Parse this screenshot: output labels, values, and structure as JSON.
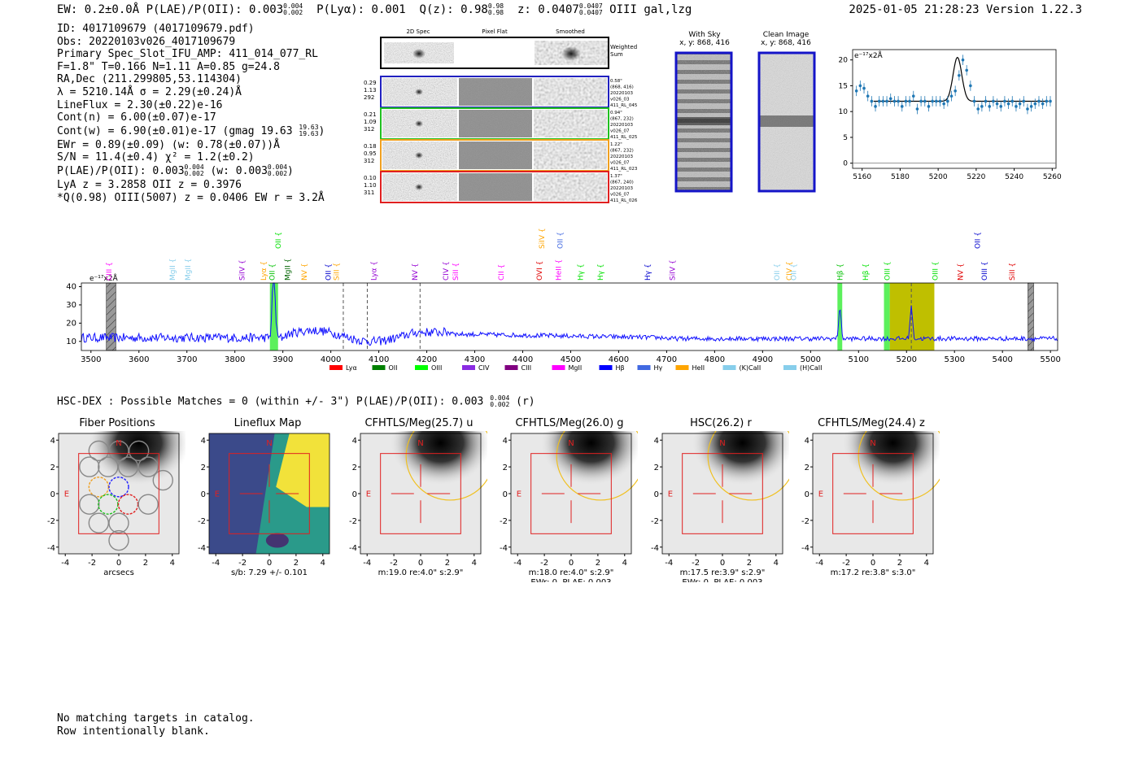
{
  "header": {
    "left": "EW: 0.2±0.0Å  P(LAE)/P(OII): 0.003",
    "plae_frac": [
      "0.004",
      "0.002"
    ],
    "plya": "P(Lyα): 0.001",
    "qz": "Q(z): 0.98",
    "qz_frac": [
      "0.98",
      "0.98"
    ],
    "z": "z: 0.0407",
    "z_frac": [
      "0.0407",
      "0.0407"
    ],
    "line": "OIII  gal,lzg",
    "right": "2025-01-05 21:28:23  Version 1.22.3"
  },
  "info": {
    "lines": [
      "ID: 4017109679 (4017109679.pdf)",
      "Obs: 20220103v026_4017109679",
      "Primary Spec_Slot_IFU_AMP: 411_014_077_RL",
      "F=1.8\"  T=0.166  N=1.11  A=0.85  g=24.8",
      "RA,Dec (211.299805,53.114304)",
      "λ = 5210.14Å  σ = 2.29(±0.24)Å",
      "LineFlux = 2.30(±0.22)e-16",
      "Cont(n) = 6.00(±0.07)e-17",
      "Cont(w) = 6.90(±0.01)e-17 (gmag 19.63",
      "EWr = 0.89(±0.09) (w: 0.78(±0.07))Å",
      "S/N = 11.4(±0.4)  χ² = 1.2(±0.2)",
      "P(LAE)/P(OII): 0.003",
      "LyA z = 3.2858  OII z = 0.3976",
      "*Q(0.98) OIII(5007) z = 0.0406  EW r = 3.2Å"
    ],
    "gmag_frac": [
      "19.63",
      "19.63"
    ],
    "plae_frac": [
      "0.004",
      "0.002"
    ],
    "plae_w": "(w: 0.003",
    "plae_w_frac": [
      "0.004",
      "0.002"
    ],
    "close_paren": ")"
  },
  "cutouts": {
    "col_titles": [
      "2D Spec",
      "Pixel Flat",
      "Smoothed"
    ],
    "weighted_label": [
      "Weighted",
      "Sum"
    ],
    "rows": [
      {
        "left": [
          "0.29",
          "1.13",
          "292"
        ],
        "right": [
          "0.58\"",
          "(868, 416)",
          "20220103",
          "v026_03",
          "411_RL_045"
        ],
        "color": "#2020c0"
      },
      {
        "left": [
          "0.21",
          "1.09",
          "312"
        ],
        "right": [
          "0.94\"",
          "(867, 232)",
          "20220103",
          "v026_07",
          "411_RL_025"
        ],
        "color": "#20c020"
      },
      {
        "left": [
          "0.18",
          "0.95",
          "312"
        ],
        "right": [
          "1.22\"",
          "(867, 232)",
          "20220103",
          "v026_07",
          "411_RL_023"
        ],
        "color": "#f0a020"
      },
      {
        "left": [
          "0.10",
          "1.10",
          "311"
        ],
        "right": [
          "1.37\"",
          "(867, 240)",
          "20220103",
          "v026_07",
          "411_RL_026"
        ],
        "color": "#e02020"
      }
    ]
  },
  "sky": {
    "with_sky": [
      "With Sky",
      "x, y: 868, 416"
    ],
    "clean": [
      "Clean Image",
      "x, y: 868, 416"
    ]
  },
  "zoom_chart": {
    "type": "scatter",
    "ylabel_unit": "e⁻¹⁷x2Å",
    "xlim": [
      5155,
      5262
    ],
    "ylim": [
      -1,
      22
    ],
    "xticks": [
      5160,
      5180,
      5200,
      5220,
      5240,
      5260
    ],
    "yticks": [
      0,
      5,
      10,
      15,
      20
    ],
    "x": [
      5157,
      5159,
      5161,
      5163,
      5165,
      5167,
      5169,
      5171,
      5173,
      5175,
      5177,
      5179,
      5181,
      5183,
      5185,
      5187,
      5189,
      5191,
      5193,
      5195,
      5197,
      5199,
      5201,
      5203,
      5205,
      5207,
      5209,
      5211,
      5213,
      5215,
      5217,
      5219,
      5221,
      5223,
      5225,
      5227,
      5229,
      5231,
      5233,
      5235,
      5237,
      5239,
      5241,
      5243,
      5245,
      5247,
      5249,
      5251,
      5253,
      5255,
      5257,
      5259
    ],
    "y": [
      14,
      15,
      14.5,
      13,
      12,
      11,
      12,
      12,
      12,
      12.5,
      12,
      12,
      11,
      12,
      12,
      13,
      10.5,
      12,
      12,
      11,
      12,
      12,
      12,
      11.5,
      12,
      13,
      14,
      17,
      20,
      18,
      15,
      12,
      10.5,
      11,
      12,
      11,
      12,
      11.5,
      11,
      12,
      11.5,
      12,
      11,
      11.5,
      12,
      10.5,
      11,
      11.5,
      12,
      11.5,
      12,
      12
    ],
    "fit": {
      "continuum": 12,
      "center": 5210.14,
      "sigma": 2.29,
      "peak": 8.5,
      "xrange": [
        5166,
        5258
      ]
    }
  },
  "spectrum_chart": {
    "type": "line",
    "ylabel_unit": "e⁻¹⁷x2Å",
    "xlim": [
      3480,
      5515
    ],
    "ylim": [
      5,
      42
    ],
    "xticks": [
      3500,
      3600,
      3700,
      3800,
      3900,
      4000,
      4100,
      4200,
      4300,
      4400,
      4500,
      4600,
      4700,
      4800,
      4900,
      5000,
      5100,
      5200,
      5300,
      5400,
      5500
    ],
    "yticks": [
      10,
      20,
      30,
      40
    ],
    "line_color": "#1010ff",
    "hatched_regions": [
      [
        3532,
        3552
      ],
      [
        5453,
        5465
      ]
    ],
    "green_bands": [
      [
        3873,
        3890
      ],
      [
        5056,
        5066
      ],
      [
        5153,
        5165
      ]
    ],
    "olive_band": [
      5165,
      5258
    ],
    "dashed_lines": [
      4026,
      4076,
      4186,
      5210
    ],
    "peaks": [
      {
        "x": 3881,
        "height": 38,
        "width": 3
      },
      {
        "x": 5061,
        "height": 17,
        "width": 2.5
      },
      {
        "x": 5210,
        "height": 18,
        "width": 2.5
      }
    ],
    "line_labels": [
      {
        "x": 3538,
        "label": "CIII",
        "color": "#ff00ff",
        "row": 0
      },
      {
        "x": 3670,
        "label": "MgII",
        "color": "#87ceeb",
        "row": 0
      },
      {
        "x": 3702,
        "label": "MgII",
        "color": "#87ceeb",
        "row": 0
      },
      {
        "x": 3815,
        "label": "SiIV",
        "color": "#9400d3",
        "row": 0
      },
      {
        "x": 3860,
        "label": "Lyα",
        "color": "#ffa500",
        "row": 0
      },
      {
        "x": 3878,
        "label": "OII",
        "color": "#00c000",
        "row": 0
      },
      {
        "x": 3890,
        "label": "OII",
        "color": "#00e000",
        "row": 1
      },
      {
        "x": 3910,
        "label": "MgII",
        "color": "#006400",
        "row": 0
      },
      {
        "x": 3945,
        "label": "NV",
        "color": "#ffa500",
        "row": 0
      },
      {
        "x": 3995,
        "label": "OII",
        "color": "#0000cd",
        "row": 0
      },
      {
        "x": 4012,
        "label": "SiII",
        "color": "#ffa500",
        "row": 0
      },
      {
        "x": 4090,
        "label": "Lyα",
        "color": "#9400d3",
        "row": 0
      },
      {
        "x": 4175,
        "label": "NV",
        "color": "#9400d3",
        "row": 0
      },
      {
        "x": 4240,
        "label": "CIV",
        "color": "#9400d3",
        "row": 0
      },
      {
        "x": 4260,
        "label": "SiII",
        "color": "#ff00ff",
        "row": 0
      },
      {
        "x": 4355,
        "label": "CII",
        "color": "#ff00ff",
        "row": 0
      },
      {
        "x": 4435,
        "label": "OVI",
        "color": "#e00000",
        "row": 0
      },
      {
        "x": 4440,
        "label": "SiIV",
        "color": "#ffa500",
        "row": 1
      },
      {
        "x": 4475,
        "label": "HeII",
        "color": "#ff00ff",
        "row": 0
      },
      {
        "x": 4478,
        "label": "OII",
        "color": "#4169e1",
        "row": 1
      },
      {
        "x": 4520,
        "label": "Hγ",
        "color": "#00e000",
        "row": 0
      },
      {
        "x": 4562,
        "label": "Hγ",
        "color": "#00e000",
        "row": 0
      },
      {
        "x": 4660,
        "label": "Hγ",
        "color": "#0000cd",
        "row": 0
      },
      {
        "x": 4712,
        "label": "SiIV",
        "color": "#9400d3",
        "row": 0
      },
      {
        "x": 4930,
        "label": "OII",
        "color": "#87ceeb",
        "row": 0
      },
      {
        "x": 4955,
        "label": "CIV",
        "color": "#ffa500",
        "row": 0
      },
      {
        "x": 4965,
        "label": "OII",
        "color": "#87ceeb",
        "row": 0
      },
      {
        "x": 5061,
        "label": "Hβ",
        "color": "#00c000",
        "row": 0
      },
      {
        "x": 5115,
        "label": "Hβ",
        "color": "#00e000",
        "row": 0
      },
      {
        "x": 5160,
        "label": "OIII",
        "color": "#00e000",
        "row": 0
      },
      {
        "x": 5260,
        "label": "OIII",
        "color": "#00e000",
        "row": 0
      },
      {
        "x": 5312,
        "label": "NV",
        "color": "#e00000",
        "row": 0
      },
      {
        "x": 5348,
        "label": "OII",
        "color": "#0000cd",
        "row": 1
      },
      {
        "x": 5362,
        "label": "OIII",
        "color": "#0000cd",
        "row": 0
      },
      {
        "x": 5420,
        "label": "SiII",
        "color": "#e00000",
        "row": 0
      }
    ],
    "legend": [
      {
        "label": "Lyα",
        "color": "#ff0000"
      },
      {
        "label": "OII",
        "color": "#008000"
      },
      {
        "label": "OIII",
        "color": "#00ff00"
      },
      {
        "label": "CIV",
        "color": "#8a2be2"
      },
      {
        "label": "CIII",
        "color": "#800080"
      },
      {
        "label": "MgII",
        "color": "#ff00ff"
      },
      {
        "label": "Hβ",
        "color": "#0000ff"
      },
      {
        "label": "Hγ",
        "color": "#4169e1"
      },
      {
        "label": "HeII",
        "color": "#ffa500"
      },
      {
        "label": "(K)CaII",
        "color": "#87ceeb"
      },
      {
        "label": "(H)CaII",
        "color": "#87ceeb"
      }
    ]
  },
  "hsc": {
    "title": "HSC-DEX : Possible Matches = 0 (within +/- 3\")  P(LAE)/P(OII): 0.003",
    "frac": [
      "0.004",
      "0.002"
    ],
    "suffix": "(r)"
  },
  "imaging": {
    "axis_ticks": [
      "-4",
      "-2",
      "0",
      "2",
      "4"
    ],
    "n_label": "N",
    "e_label": "E",
    "panels": [
      {
        "title": "Fiber Positions",
        "caption1": "arcsecs",
        "caption2": "",
        "kind": "fibers"
      },
      {
        "title": "Lineflux Map",
        "caption1": "s/b: 7.29 +/- 0.101",
        "caption2": "",
        "kind": "flux"
      },
      {
        "title": "CFHTLS/Meg(25.7) u",
        "caption1": "m:19.0  re:4.0\"  s:2.9\"",
        "caption2": "",
        "kind": "img"
      },
      {
        "title": "CFHTLS/Meg(26.0) g",
        "caption1": "m:18.0  re:4.0\"  s:2.9\"",
        "caption2": "EWr: 0, PLAE: 0.003",
        "kind": "img"
      },
      {
        "title": "HSC(26.2) r",
        "caption1": "m:17.5  re:3.9\"  s:2.9\"",
        "caption2": "EWr: 0, PLAE: 0.003",
        "kind": "img"
      },
      {
        "title": "CFHTLS/Meg(24.4) z",
        "caption1": "m:17.2  re:3.8\"  s:3.0\"",
        "caption2": "",
        "kind": "img"
      }
    ]
  },
  "footer": {
    "lines": [
      "No matching targets in catalog.",
      "Row intentionally blank."
    ]
  }
}
